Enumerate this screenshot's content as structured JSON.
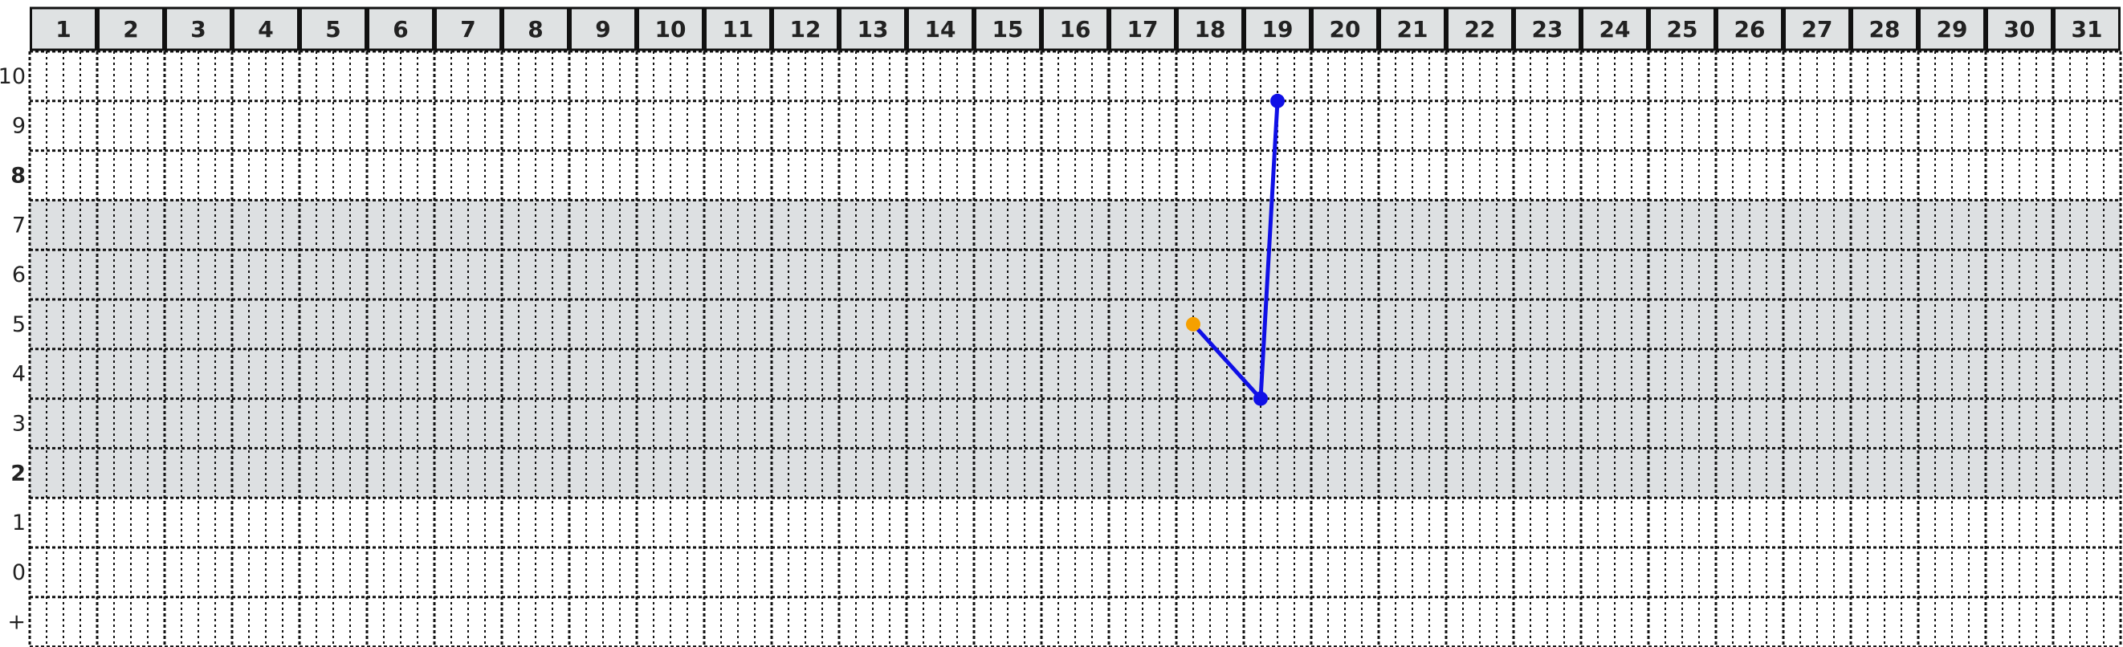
{
  "chart_data": {
    "type": "line",
    "title": "",
    "xlabel": "",
    "ylabel": "",
    "x_ticks": [
      "1",
      "2",
      "3",
      "4",
      "5",
      "6",
      "7",
      "8",
      "9",
      "10",
      "11",
      "12",
      "13",
      "14",
      "15",
      "16",
      "17",
      "18",
      "19",
      "20",
      "21",
      "22",
      "23",
      "24",
      "25",
      "26",
      "27",
      "28",
      "29",
      "30",
      "31"
    ],
    "y_ticks": [
      "10",
      "9",
      "8",
      "7",
      "6",
      "5",
      "4",
      "3",
      "2",
      "1",
      "0",
      "+"
    ],
    "bold_y_ticks": [
      "8",
      "2"
    ],
    "shaded_y_band": [
      2,
      7
    ],
    "xlim": [
      1,
      31
    ],
    "ylim": [
      -1,
      10
    ],
    "grid": true,
    "subdivisions_per_day": 4,
    "series": [
      {
        "color": "#1010e6",
        "points": [
          {
            "x": 18.25,
            "y": 5.0,
            "color": "#f5a000"
          },
          {
            "x": 19.25,
            "y": 3.5,
            "color": "#1010e6"
          },
          {
            "x": 19.5,
            "y": 9.5,
            "color": "#1010e6"
          }
        ]
      }
    ]
  },
  "colors": {
    "header_fill": "#dfe2e3",
    "band_fill": "#dde0e2",
    "grid_line": "#111111",
    "line": "#1010e6",
    "start_point": "#f5a000"
  }
}
